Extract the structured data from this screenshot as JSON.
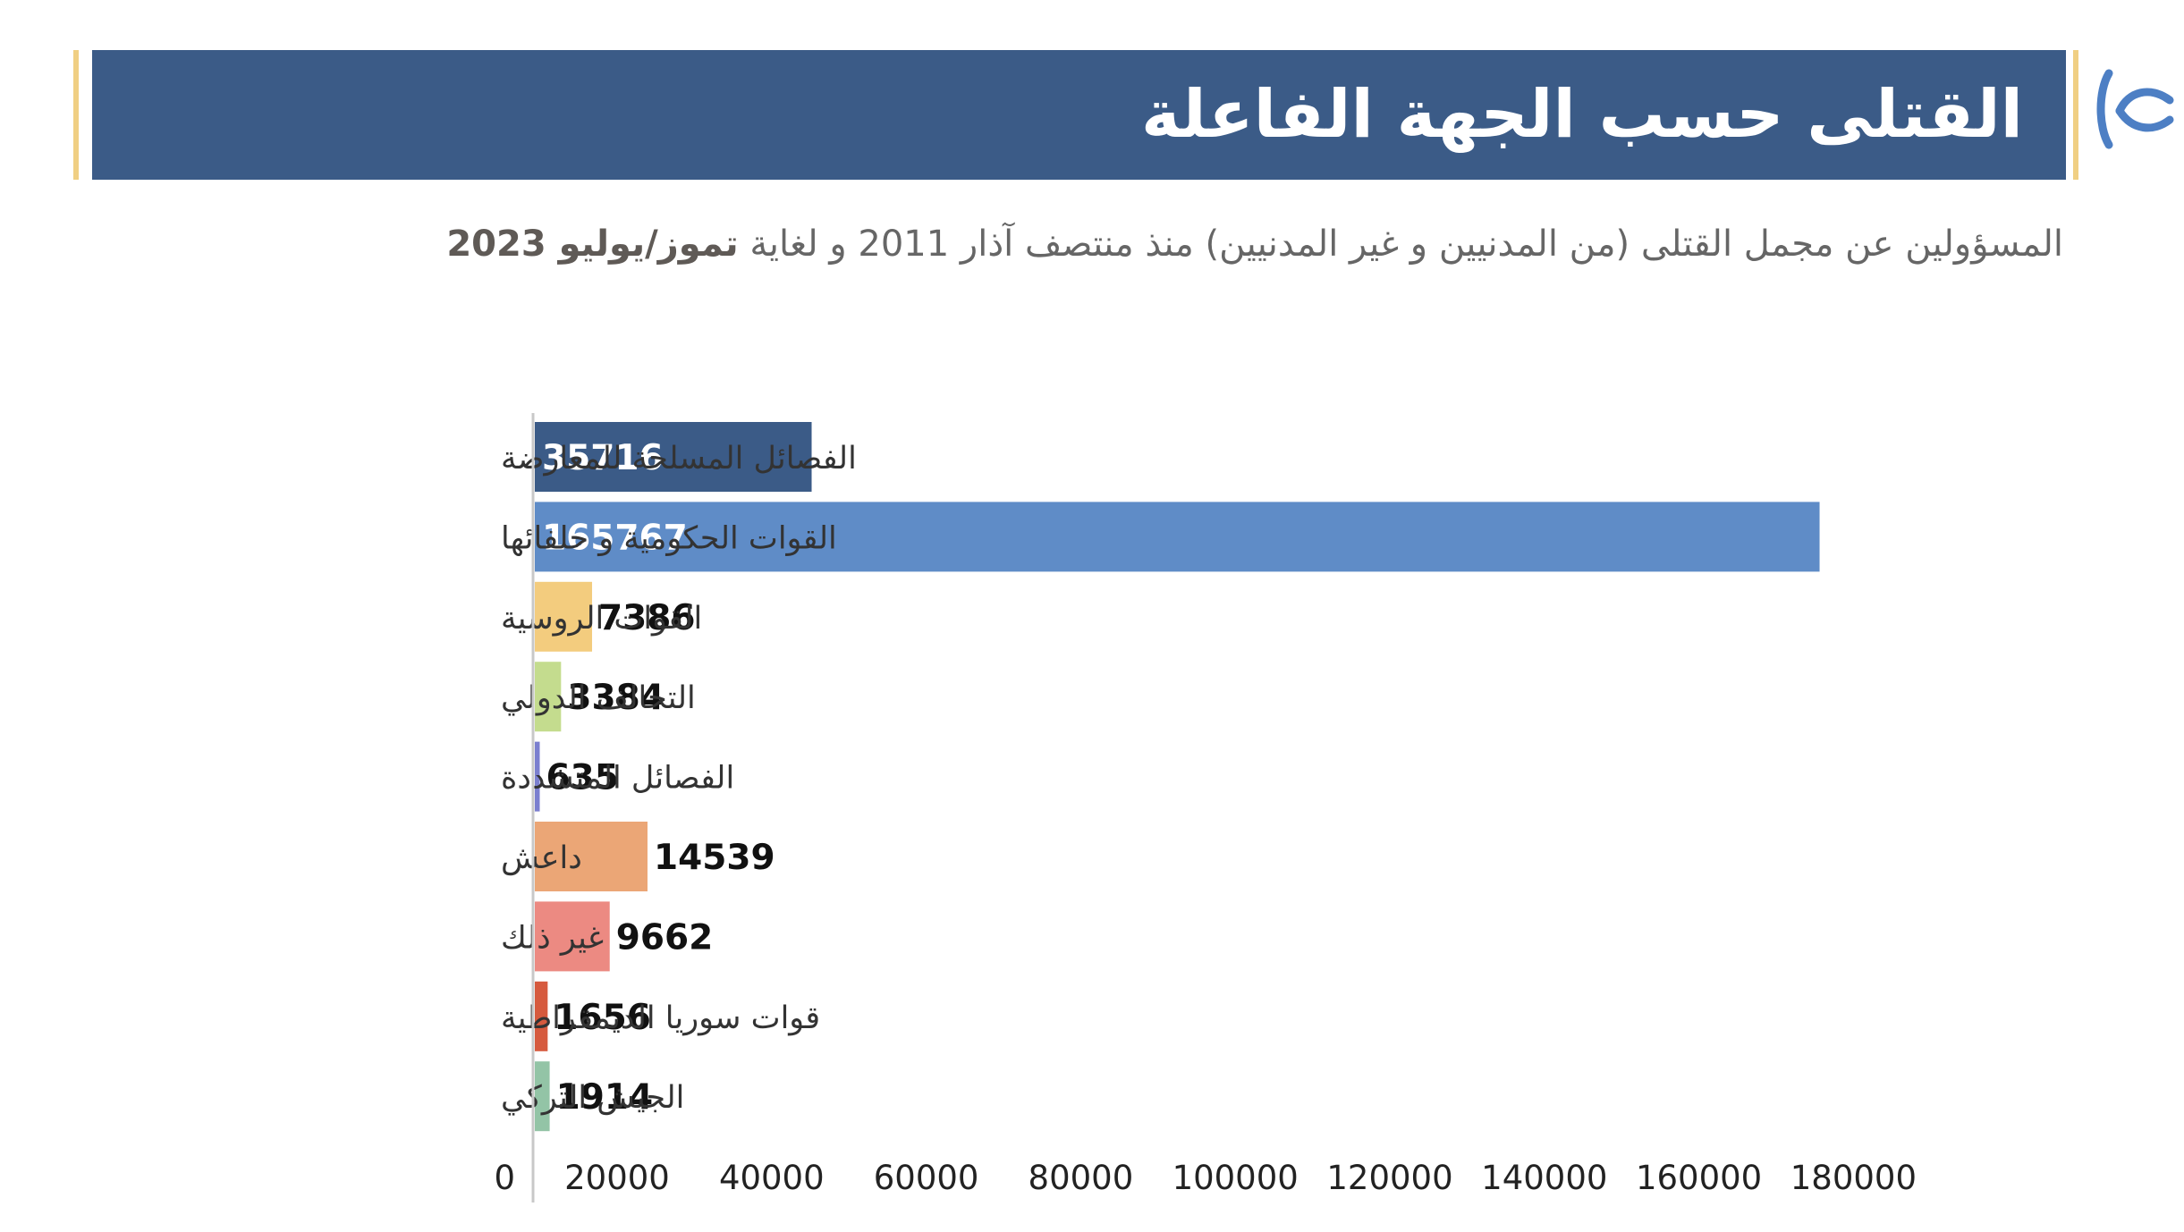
{
  "header": {
    "title": "القتلى حسب الجهة الفاعلة"
  },
  "subtitle": {
    "main": "المسؤولين عن مجمل القتلى (من المدنيين و غير المدنيين) منذ منتصف آذار 2011 و لغاية",
    "emphasis": "تموز/يوليو 2023"
  },
  "colors": {
    "header_bg": "#3b5b87",
    "accent": "#f0cf83",
    "logo": "#4d7fc4"
  },
  "chart_data": {
    "type": "bar",
    "orientation": "horizontal",
    "categories": [
      "الفصائل المسلحة للمعارضة",
      "القوات الحكومية و حلفائها",
      "القوات الروسية",
      "التحالف الدولي",
      "الفصائل المتشددة",
      "داعش",
      "غير ذلك",
      "قوات سوريا الديمقراطية",
      "الجيش التركي"
    ],
    "values": [
      35716,
      165767,
      7386,
      3384,
      635,
      14539,
      9662,
      1656,
      1914
    ],
    "bar_colors": [
      "#3b5b87",
      "#5f8cc7",
      "#f3cc7e",
      "#c4dc8e",
      "#7b7fcf",
      "#eba676",
      "#ec8a82",
      "#d65a3e",
      "#93c4a6"
    ],
    "x_ticks": [
      0,
      20000,
      40000,
      60000,
      80000,
      100000,
      120000,
      140000,
      160000,
      180000
    ],
    "xlim": [
      0,
      180000
    ],
    "grid": false,
    "legend": "none"
  }
}
